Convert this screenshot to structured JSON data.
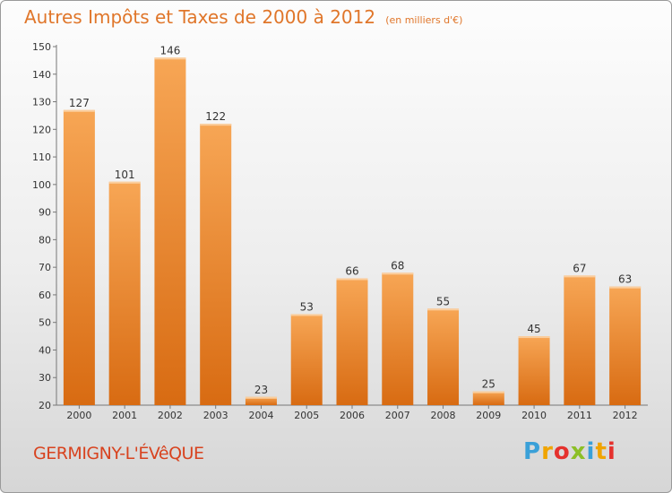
{
  "header": {
    "title": "Autres Impôts et Taxes de 2000 à 2012",
    "unit": "(en milliers d'€)"
  },
  "footer": {
    "place": "GERMIGNY-L'ÉVêQUE",
    "brand": "Proxiti"
  },
  "colors": {
    "bar_top": "#f7a655",
    "bar_bottom": "#d86b12",
    "title": "#e0762a",
    "place": "#d8431f"
  },
  "chart_data": {
    "type": "bar",
    "categories": [
      "2000",
      "2001",
      "2002",
      "2003",
      "2004",
      "2005",
      "2006",
      "2007",
      "2008",
      "2009",
      "2010",
      "2011",
      "2012"
    ],
    "values": [
      127,
      101,
      146,
      122,
      23,
      53,
      66,
      68,
      55,
      25,
      45,
      67,
      63
    ],
    "ylim": [
      20,
      150
    ],
    "yticks": [
      20,
      30,
      40,
      50,
      60,
      70,
      80,
      90,
      100,
      110,
      120,
      130,
      140,
      150
    ],
    "grid": false,
    "data_labels": true
  }
}
